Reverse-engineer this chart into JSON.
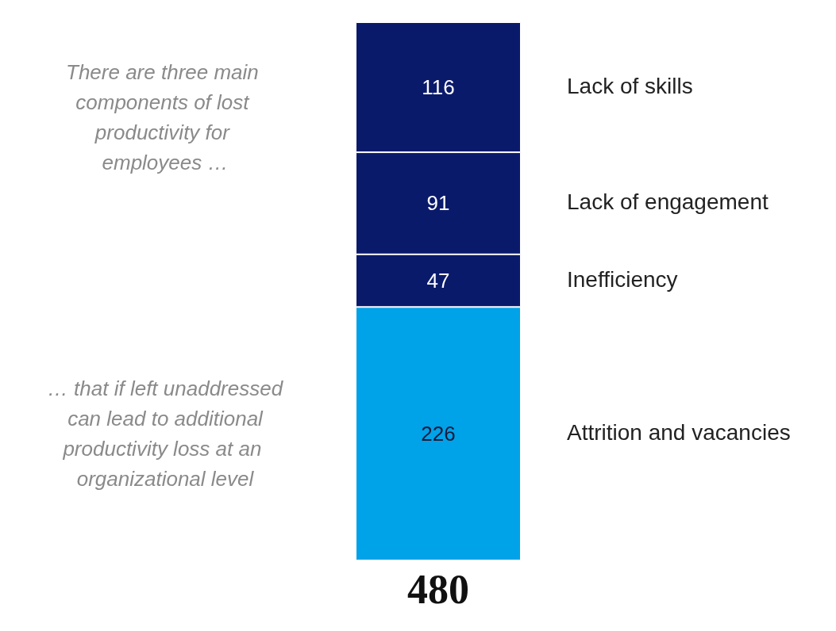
{
  "chart_data": {
    "type": "bar",
    "stacked": true,
    "categories": [
      null
    ],
    "series": [
      {
        "name": "Attrition and vacancies",
        "color": "#00a2e8",
        "values": [
          226
        ]
      },
      {
        "name": "Inefficiency",
        "color": "#0a1a6b",
        "values": [
          47
        ]
      },
      {
        "name": "Lack of engagement",
        "color": "#0a1a6b",
        "values": [
          91
        ]
      },
      {
        "name": "Lack of skills",
        "color": "#0a1a6b",
        "values": [
          116
        ]
      }
    ],
    "data_labels": true,
    "totals": [
      "480"
    ],
    "legend": false,
    "grid": false,
    "annotations": [
      "There are three main components of lost productivity for employees …",
      "… that if left unaddressed can lead to additional productivity loss at an organizational level"
    ]
  }
}
